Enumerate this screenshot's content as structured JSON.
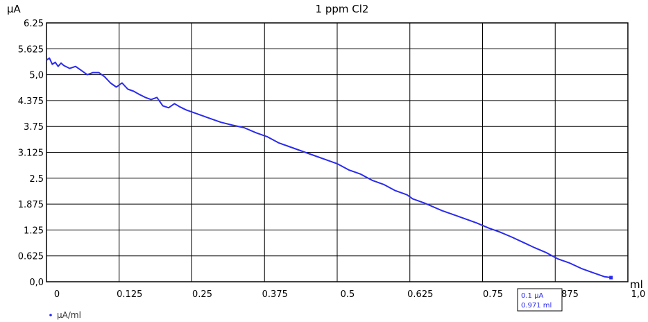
{
  "chart_data": {
    "type": "line",
    "title": "1 ppm Cl2",
    "xlabel": "ml",
    "ylabel": "µA",
    "xlim": [
      0,
      1.0
    ],
    "ylim": [
      0,
      6.25
    ],
    "x_ticks": [
      "0",
      "0.125",
      "0.25",
      "0.375",
      "0.5",
      "0.625",
      "0.75",
      "0.875",
      "1,0"
    ],
    "x_tick_values": [
      0,
      0.125,
      0.25,
      0.375,
      0.5,
      0.625,
      0.75,
      0.875,
      1.0
    ],
    "y_ticks": [
      "0,0",
      "0.625",
      "1.25",
      "1.875",
      "2.5",
      "3.125",
      "3.75",
      "4.375",
      "5,0",
      "5.625",
      "6.25"
    ],
    "y_tick_values": [
      0,
      0.625,
      1.25,
      1.875,
      2.5,
      3.125,
      3.75,
      4.375,
      5.0,
      5.625,
      6.25
    ],
    "grid": true,
    "legend_position": "bottom-left",
    "series": [
      {
        "name": "µA/ml",
        "color": "#2a2af0",
        "x": [
          0,
          0.005,
          0.01,
          0.015,
          0.02,
          0.025,
          0.03,
          0.04,
          0.05,
          0.06,
          0.07,
          0.08,
          0.09,
          0.1,
          0.11,
          0.12,
          0.13,
          0.14,
          0.15,
          0.16,
          0.17,
          0.18,
          0.19,
          0.2,
          0.21,
          0.22,
          0.23,
          0.24,
          0.25,
          0.26,
          0.27,
          0.28,
          0.3,
          0.32,
          0.34,
          0.36,
          0.38,
          0.4,
          0.42,
          0.44,
          0.46,
          0.48,
          0.5,
          0.52,
          0.54,
          0.56,
          0.58,
          0.6,
          0.62,
          0.625,
          0.63,
          0.65,
          0.68,
          0.7,
          0.72,
          0.74,
          0.76,
          0.78,
          0.8,
          0.82,
          0.84,
          0.86,
          0.88,
          0.9,
          0.92,
          0.94,
          0.96,
          0.971
        ],
        "y": [
          5.35,
          5.4,
          5.25,
          5.3,
          5.2,
          5.28,
          5.22,
          5.15,
          5.2,
          5.1,
          5.0,
          5.05,
          5.05,
          4.95,
          4.8,
          4.7,
          4.8,
          4.65,
          4.6,
          4.52,
          4.45,
          4.4,
          4.45,
          4.25,
          4.2,
          4.3,
          4.22,
          4.15,
          4.1,
          4.05,
          4.0,
          3.95,
          3.85,
          3.78,
          3.72,
          3.6,
          3.5,
          3.35,
          3.25,
          3.15,
          3.05,
          2.95,
          2.85,
          2.7,
          2.6,
          2.45,
          2.35,
          2.2,
          2.1,
          2.05,
          2.0,
          1.9,
          1.72,
          1.62,
          1.52,
          1.42,
          1.3,
          1.2,
          1.08,
          0.95,
          0.82,
          0.7,
          0.55,
          0.45,
          0.32,
          0.22,
          0.12,
          0.1
        ]
      }
    ],
    "tooltip": {
      "line1": "0.1 µA",
      "line2": "0.971 ml"
    }
  }
}
